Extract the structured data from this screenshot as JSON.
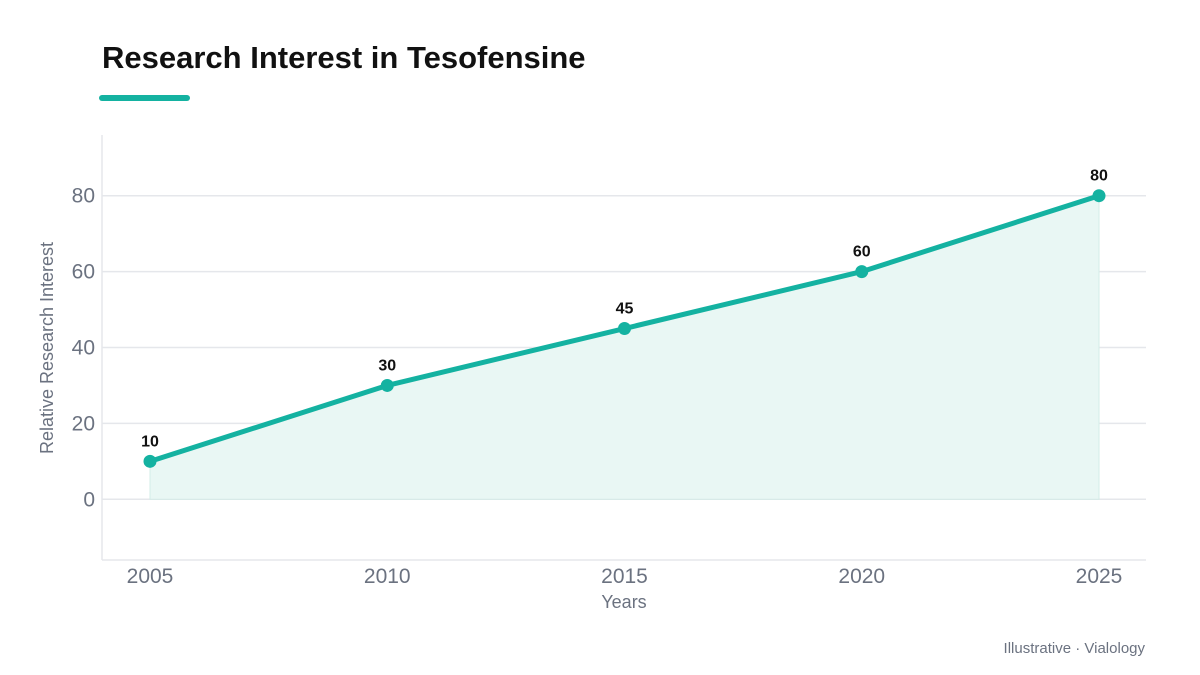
{
  "header": {
    "title": "Research Interest in Tesofensine"
  },
  "footer": {
    "credit": "Illustrative · Vialology"
  },
  "colors": {
    "accent": "#14b2a1",
    "area_fill": "#e9f7f4",
    "grid": "#e5e7eb",
    "axis_text": "#6b7280"
  },
  "chart_data": {
    "type": "area",
    "title": "Research Interest in Tesofensine",
    "xlabel": "Years",
    "ylabel": "Relative Research Interest",
    "categories": [
      "2005",
      "2010",
      "2015",
      "2020",
      "2025"
    ],
    "x": [
      2005,
      2010,
      2015,
      2020,
      2025
    ],
    "series": [
      {
        "values": [
          10,
          30,
          45,
          60,
          80
        ],
        "data_labels": [
          "10",
          "30",
          "45",
          "60",
          "80"
        ]
      }
    ],
    "yticks": [
      0,
      20,
      40,
      60,
      80
    ],
    "ylim": [
      -16,
      96
    ],
    "xlim": [
      2005,
      2025
    ],
    "grid": "horizontal",
    "legend": "none"
  }
}
